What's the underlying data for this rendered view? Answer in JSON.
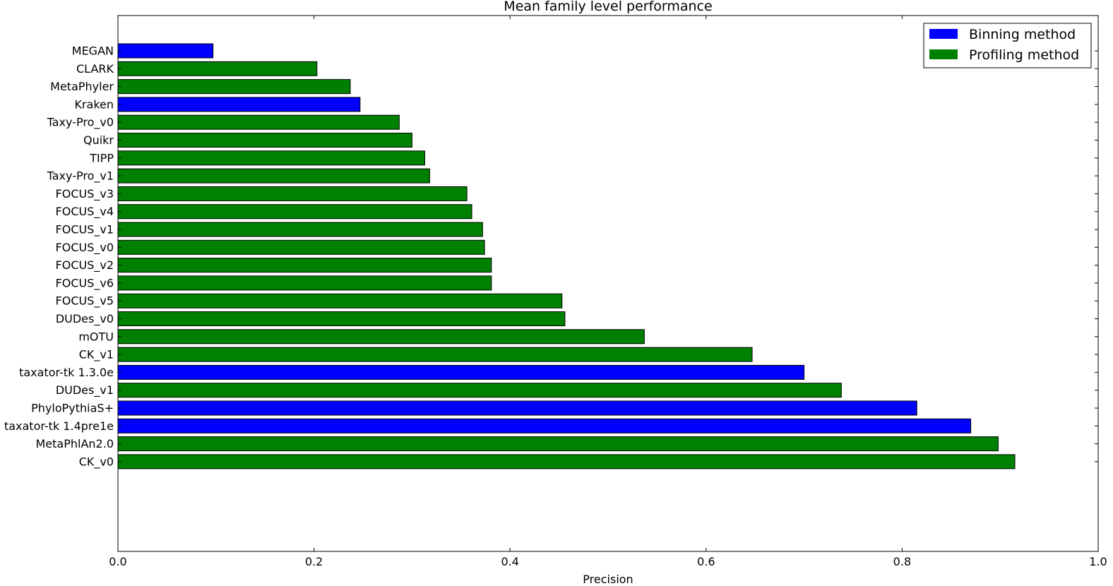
{
  "chart_data": {
    "type": "bar",
    "orientation": "horizontal",
    "title": "Mean family level performance",
    "xlabel": "Precision",
    "ylabel": "",
    "xlim": [
      0,
      1.0
    ],
    "xticks": [
      "0.0",
      "0.2",
      "0.4",
      "0.6",
      "0.8",
      "1.0"
    ],
    "grid": false,
    "legend": {
      "placement": "top-right",
      "entries": [
        {
          "label": "Binning method",
          "color": "#0000ff"
        },
        {
          "label": "Profiling method",
          "color": "#008000"
        }
      ]
    },
    "categories": [
      "MEGAN",
      "CLARK",
      "MetaPhyler",
      "Kraken",
      "Taxy-Pro_v0",
      "Quikr",
      "TIPP",
      "Taxy-Pro_v1",
      "FOCUS_v3",
      "FOCUS_v4",
      "FOCUS_v1",
      "FOCUS_v0",
      "FOCUS_v2",
      "FOCUS_v6",
      "FOCUS_v5",
      "DUDes_v0",
      "mOTU",
      "CK_v1",
      "taxator-tk 1.3.0e",
      "DUDes_v1",
      "PhyloPythiaS+",
      "taxator-tk 1.4pre1e",
      "MetaPhlAn2.0",
      "CK_v0"
    ],
    "values": [
      0.097,
      0.203,
      0.237,
      0.247,
      0.287,
      0.3,
      0.313,
      0.318,
      0.356,
      0.361,
      0.372,
      0.374,
      0.381,
      0.381,
      0.453,
      0.456,
      0.537,
      0.647,
      0.7,
      0.738,
      0.815,
      0.87,
      0.898,
      0.915
    ],
    "method_type": [
      "Binning method",
      "Profiling method",
      "Profiling method",
      "Binning method",
      "Profiling method",
      "Profiling method",
      "Profiling method",
      "Profiling method",
      "Profiling method",
      "Profiling method",
      "Profiling method",
      "Profiling method",
      "Profiling method",
      "Profiling method",
      "Profiling method",
      "Profiling method",
      "Profiling method",
      "Profiling method",
      "Binning method",
      "Profiling method",
      "Binning method",
      "Binning method",
      "Profiling method",
      "Profiling method"
    ]
  }
}
